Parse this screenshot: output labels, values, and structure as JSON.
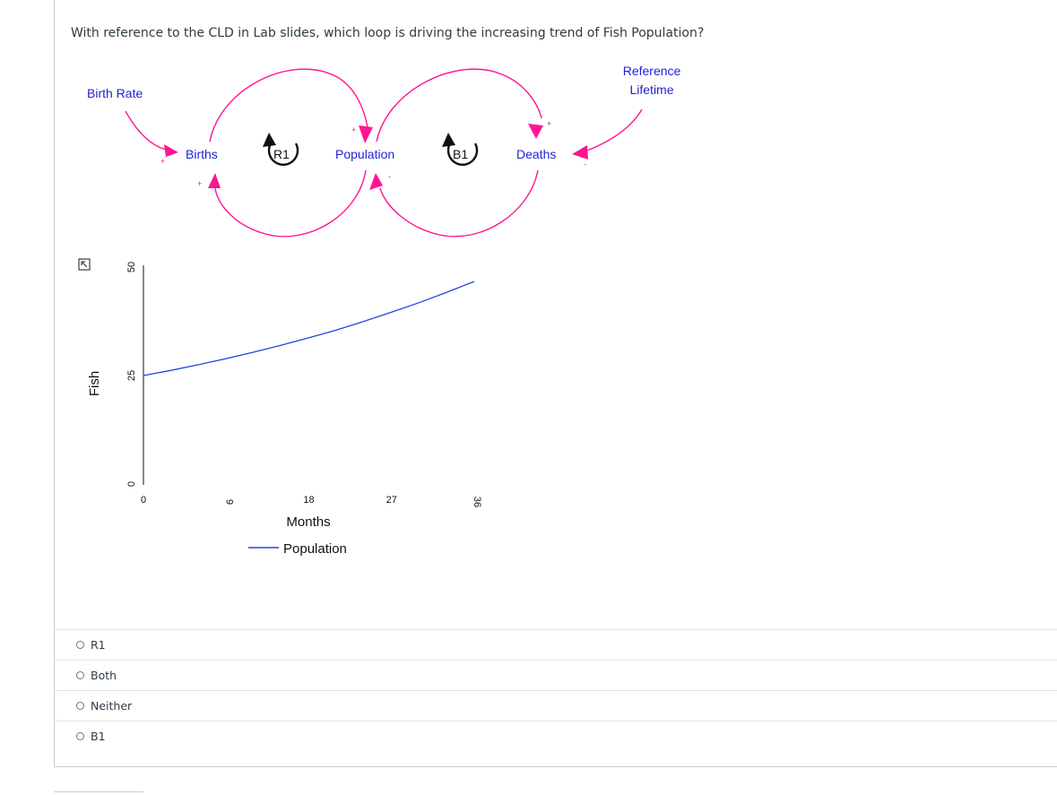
{
  "question": {
    "text": "With reference to the CLD in Lab slides, which loop is driving the increasing trend of Fish Population?"
  },
  "cld": {
    "labels": {
      "birth_rate": "Birth Rate",
      "births": "Births",
      "population": "Population",
      "deaths": "Deaths",
      "reference_lifetime_1": "Reference",
      "reference_lifetime_2": "Lifetime",
      "loop_r1": "R1",
      "loop_b1": "B1"
    },
    "link_signs": {
      "plus": "+",
      "minus": "-"
    },
    "colors": {
      "arrow": "#ff1493",
      "variable_text": "#1f1fd6"
    }
  },
  "chart_data": {
    "type": "line",
    "xlabel": "Months",
    "ylabel": "Fish",
    "x_ticks": [
      "0",
      "9",
      "18",
      "27",
      "36"
    ],
    "y_ticks": [
      "0",
      "25",
      "50"
    ],
    "xlim": [
      0,
      36
    ],
    "ylim": [
      0,
      50
    ],
    "legend": "bottom",
    "series": [
      {
        "name": "Population",
        "color": "#2446e0",
        "x": [
          0,
          3,
          6,
          9,
          12,
          15,
          18,
          21,
          24,
          27,
          30,
          33,
          36
        ],
        "y": [
          25.0,
          26.2,
          27.5,
          28.9,
          30.4,
          32.0,
          33.7,
          35.5,
          37.5,
          39.6,
          41.8,
          44.2,
          46.7
        ]
      }
    ],
    "icons": [
      "expand-icon"
    ]
  },
  "options": [
    {
      "label": "R1"
    },
    {
      "label": "Both"
    },
    {
      "label": "Neither"
    },
    {
      "label": "B1"
    }
  ]
}
